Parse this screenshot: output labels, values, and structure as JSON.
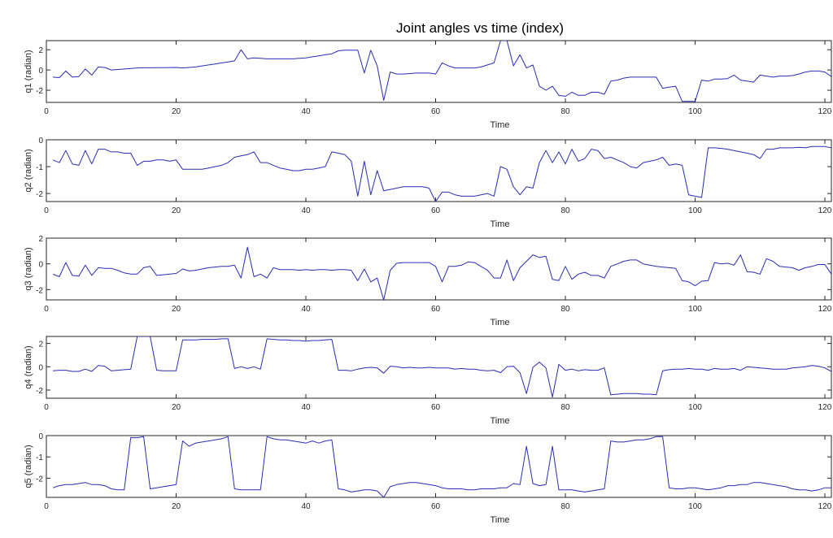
{
  "chart_data": {
    "type": "line",
    "title": "Joint angles vs time (index)",
    "xlabel": "Time",
    "xlim": [
      0,
      121
    ],
    "xticks": [
      0,
      20,
      40,
      60,
      80,
      100,
      120
    ],
    "line_color": "#2b2bb5",
    "x": [
      1,
      2,
      3,
      4,
      5,
      6,
      7,
      8,
      9,
      10,
      11,
      12,
      13,
      14,
      15,
      16,
      17,
      18,
      19,
      20,
      21,
      22,
      23,
      24,
      25,
      26,
      27,
      28,
      29,
      30,
      31,
      32,
      33,
      34,
      35,
      36,
      37,
      38,
      39,
      40,
      41,
      42,
      43,
      44,
      45,
      46,
      47,
      48,
      49,
      50,
      51,
      52,
      53,
      54,
      55,
      56,
      57,
      58,
      59,
      60,
      61,
      62,
      63,
      64,
      65,
      66,
      67,
      68,
      69,
      70,
      71,
      72,
      73,
      74,
      75,
      76,
      77,
      78,
      79,
      80,
      81,
      82,
      83,
      84,
      85,
      86,
      87,
      88,
      89,
      90,
      91,
      92,
      93,
      94,
      95,
      96,
      97,
      98,
      99,
      100,
      101,
      102,
      103,
      104,
      105,
      106,
      107,
      108,
      109,
      110,
      111,
      112,
      113,
      114,
      115,
      116,
      117,
      118,
      119,
      120,
      121
    ],
    "panels": [
      {
        "ylabel": "q1 (radian)",
        "ylim": [
          -3.2,
          2.9
        ],
        "yticks": [
          -2,
          0,
          2
        ],
        "values": [
          -0.7,
          -0.75,
          -0.1,
          -0.7,
          -0.65,
          0.1,
          -0.5,
          0.3,
          0.25,
          0.0,
          0.05,
          0.1,
          0.15,
          0.2,
          0.22,
          0.22,
          0.23,
          0.23,
          0.24,
          0.25,
          0.2,
          0.25,
          0.3,
          0.4,
          0.5,
          0.6,
          0.7,
          0.8,
          0.9,
          2.0,
          1.1,
          1.2,
          1.15,
          1.1,
          1.1,
          1.1,
          1.1,
          1.1,
          1.15,
          1.2,
          1.3,
          1.4,
          1.5,
          1.6,
          1.9,
          1.95,
          1.95,
          1.95,
          -0.3,
          1.95,
          0.4,
          -3.0,
          -0.2,
          -0.4,
          -0.4,
          -0.35,
          -0.3,
          -0.3,
          -0.3,
          -0.4,
          0.7,
          0.4,
          0.2,
          0.2,
          0.2,
          0.2,
          0.3,
          0.5,
          0.7,
          2.9,
          2.9,
          0.4,
          1.5,
          0.2,
          0.5,
          -1.6,
          -2.0,
          -1.6,
          -2.5,
          -2.6,
          -2.2,
          -2.5,
          -2.5,
          -2.2,
          -2.2,
          -2.4,
          -1.1,
          -1.0,
          -0.8,
          -0.7,
          -0.7,
          -0.7,
          -0.7,
          -0.7,
          -1.8,
          -1.7,
          -1.6,
          -3.1,
          -3.1,
          -3.1,
          -1.0,
          -1.1,
          -0.9,
          -0.9,
          -0.85,
          -0.5,
          -1.0,
          -1.1,
          -1.2,
          -0.5,
          -0.6,
          -0.7,
          -0.6,
          -0.6,
          -0.55,
          -0.4,
          -0.2,
          -0.1,
          -0.1,
          -0.2,
          -0.65
        ]
      },
      {
        "ylabel": "q2 (radian)",
        "ylim": [
          -2.3,
          0
        ],
        "yticks": [
          -2,
          -1,
          0
        ],
        "values": [
          -0.75,
          -0.85,
          -0.4,
          -0.9,
          -0.95,
          -0.4,
          -0.9,
          -0.35,
          -0.35,
          -0.45,
          -0.45,
          -0.5,
          -0.5,
          -0.95,
          -0.8,
          -0.8,
          -0.75,
          -0.75,
          -0.8,
          -0.75,
          -1.1,
          -1.1,
          -1.1,
          -1.1,
          -1.05,
          -1.0,
          -0.95,
          -0.85,
          -0.65,
          -0.6,
          -0.55,
          -0.45,
          -0.85,
          -0.85,
          -0.95,
          -1.05,
          -1.1,
          -1.15,
          -1.15,
          -1.1,
          -1.1,
          -1.05,
          -1.0,
          -0.45,
          -0.5,
          -0.55,
          -0.8,
          -2.1,
          -0.8,
          -2.05,
          -1.15,
          -1.9,
          -1.85,
          -1.8,
          -1.75,
          -1.75,
          -1.75,
          -1.75,
          -1.8,
          -2.3,
          -1.95,
          -1.95,
          -2.05,
          -2.1,
          -2.1,
          -2.1,
          -2.05,
          -2.0,
          -2.1,
          -1.0,
          -1.1,
          -1.75,
          -2.05,
          -1.75,
          -1.8,
          -0.85,
          -0.4,
          -0.85,
          -0.45,
          -0.9,
          -0.35,
          -0.8,
          -0.7,
          -0.35,
          -0.4,
          -0.7,
          -0.65,
          -0.75,
          -0.85,
          -1.0,
          -1.05,
          -0.85,
          -0.8,
          -0.75,
          -0.65,
          -0.95,
          -0.9,
          -0.95,
          -2.05,
          -2.1,
          -2.15,
          -0.3,
          -0.3,
          -0.32,
          -0.35,
          -0.4,
          -0.45,
          -0.5,
          -0.55,
          -0.7,
          -0.35,
          -0.35,
          -0.3,
          -0.3,
          -0.3,
          -0.28,
          -0.3,
          -0.25,
          -0.25,
          -0.25,
          -0.3
        ]
      },
      {
        "ylabel": "q3 (radian)",
        "ylim": [
          -2.8,
          2
        ],
        "yticks": [
          -2,
          0,
          2
        ],
        "values": [
          -0.8,
          -1.0,
          0.1,
          -0.9,
          -0.95,
          -0.1,
          -0.9,
          -0.3,
          -0.35,
          -0.35,
          -0.5,
          -0.7,
          -0.8,
          -0.8,
          -0.3,
          -0.2,
          -0.9,
          -0.85,
          -0.8,
          -0.75,
          -0.4,
          -0.55,
          -0.5,
          -0.4,
          -0.3,
          -0.25,
          -0.2,
          -0.2,
          -0.1,
          -1.1,
          1.3,
          -1.0,
          -0.8,
          -1.1,
          -0.3,
          -0.45,
          -0.45,
          -0.45,
          -0.5,
          -0.45,
          -0.5,
          -0.45,
          -0.45,
          -0.5,
          -0.45,
          -0.45,
          -0.5,
          -1.3,
          -0.4,
          -1.4,
          -1.1,
          -2.8,
          -0.5,
          0.05,
          0.1,
          0.1,
          0.1,
          0.1,
          0.1,
          -0.2,
          -1.4,
          -0.2,
          -0.2,
          -0.1,
          0.15,
          0.1,
          -0.2,
          -0.5,
          -1.1,
          -1.1,
          0.3,
          -1.3,
          -0.3,
          0.2,
          0.7,
          0.5,
          0.6,
          -1.2,
          -1.3,
          -0.2,
          -1.2,
          -0.8,
          -0.65,
          -0.9,
          -0.9,
          -1.1,
          -0.2,
          0.0,
          0.2,
          0.3,
          0.3,
          0.0,
          -0.1,
          -0.2,
          -0.25,
          -0.3,
          -0.35,
          -1.3,
          -1.4,
          -1.7,
          -1.35,
          -1.3,
          0.1,
          0.0,
          0.05,
          -0.1,
          0.7,
          -0.6,
          -0.65,
          -0.8,
          0.4,
          0.2,
          -0.2,
          -0.25,
          -0.3,
          -0.5,
          -0.3,
          -0.2,
          -0.05,
          -0.05,
          -0.8
        ]
      },
      {
        "ylabel": "q4 (radian)",
        "ylim": [
          -2.7,
          2.6
        ],
        "yticks": [
          -2,
          0,
          2
        ],
        "values": [
          -0.35,
          -0.3,
          -0.3,
          -0.4,
          -0.4,
          -0.2,
          -0.4,
          0.1,
          0.05,
          -0.35,
          -0.3,
          -0.25,
          -0.2,
          2.6,
          2.6,
          2.6,
          -0.3,
          -0.35,
          -0.35,
          -0.35,
          2.3,
          2.3,
          2.3,
          2.35,
          2.35,
          2.35,
          2.4,
          2.4,
          -0.15,
          0.0,
          -0.15,
          0.0,
          -0.2,
          2.4,
          2.35,
          2.3,
          2.3,
          2.25,
          2.25,
          2.2,
          2.25,
          2.25,
          2.3,
          2.35,
          -0.3,
          -0.3,
          -0.35,
          -0.2,
          -0.1,
          -0.05,
          -0.1,
          -0.55,
          0.05,
          0.0,
          -0.1,
          -0.05,
          -0.1,
          -0.1,
          -0.05,
          -0.1,
          -0.1,
          -0.1,
          -0.2,
          -0.15,
          -0.2,
          -0.2,
          -0.3,
          -0.35,
          -0.3,
          -0.5,
          0.0,
          0.05,
          -0.5,
          -2.3,
          -0.05,
          0.4,
          -0.1,
          -2.6,
          0.2,
          -0.3,
          -0.2,
          -0.35,
          -0.25,
          -0.3,
          -0.3,
          -0.1,
          -2.4,
          -2.35,
          -2.3,
          -2.3,
          -2.3,
          -2.35,
          -2.35,
          -2.4,
          -0.35,
          -0.25,
          -0.2,
          -0.2,
          -0.15,
          -0.2,
          -0.2,
          -0.3,
          -0.15,
          -0.2,
          -0.2,
          -0.15,
          -0.3,
          0.0,
          -0.05,
          -0.1,
          -0.15,
          -0.2,
          -0.2,
          -0.2,
          -0.1,
          -0.05,
          0.0,
          0.1,
          0.05,
          -0.1,
          -0.4
        ]
      },
      {
        "ylabel": "q5 (radian)",
        "ylim": [
          -2.9,
          0
        ],
        "yticks": [
          -2,
          -1,
          0
        ],
        "values": [
          -2.45,
          -2.35,
          -2.3,
          -2.3,
          -2.25,
          -2.2,
          -2.3,
          -2.3,
          -2.35,
          -2.5,
          -2.55,
          -2.55,
          -0.1,
          -0.1,
          -0.05,
          -2.5,
          -2.45,
          -2.4,
          -2.35,
          -2.3,
          -0.25,
          -0.5,
          -0.35,
          -0.3,
          -0.25,
          -0.2,
          -0.15,
          -0.05,
          -2.5,
          -2.55,
          -2.55,
          -2.55,
          -2.55,
          -0.05,
          -0.15,
          -0.2,
          -0.2,
          -0.25,
          -0.3,
          -0.35,
          -0.25,
          -0.35,
          -0.25,
          -0.2,
          -2.5,
          -2.55,
          -2.65,
          -2.6,
          -2.55,
          -2.55,
          -2.6,
          -2.9,
          -2.4,
          -2.3,
          -2.25,
          -2.2,
          -2.2,
          -2.25,
          -2.3,
          -2.35,
          -2.45,
          -2.5,
          -2.5,
          -2.5,
          -2.55,
          -2.55,
          -2.5,
          -2.5,
          -2.5,
          -2.45,
          -2.45,
          -2.25,
          -2.3,
          -0.5,
          -2.25,
          -2.35,
          -2.3,
          -0.5,
          -2.55,
          -2.55,
          -2.55,
          -2.6,
          -2.65,
          -2.6,
          -2.55,
          -2.5,
          -0.25,
          -0.3,
          -0.3,
          -0.25,
          -0.2,
          -0.2,
          -0.15,
          -0.05,
          -0.05,
          -2.45,
          -2.5,
          -2.5,
          -2.45,
          -2.45,
          -2.5,
          -2.55,
          -2.5,
          -2.45,
          -2.35,
          -2.35,
          -2.3,
          -2.3,
          -2.2,
          -2.2,
          -2.25,
          -2.3,
          -2.35,
          -2.4,
          -2.5,
          -2.55,
          -2.55,
          -2.6,
          -2.55,
          -2.45,
          -2.45
        ]
      }
    ]
  }
}
